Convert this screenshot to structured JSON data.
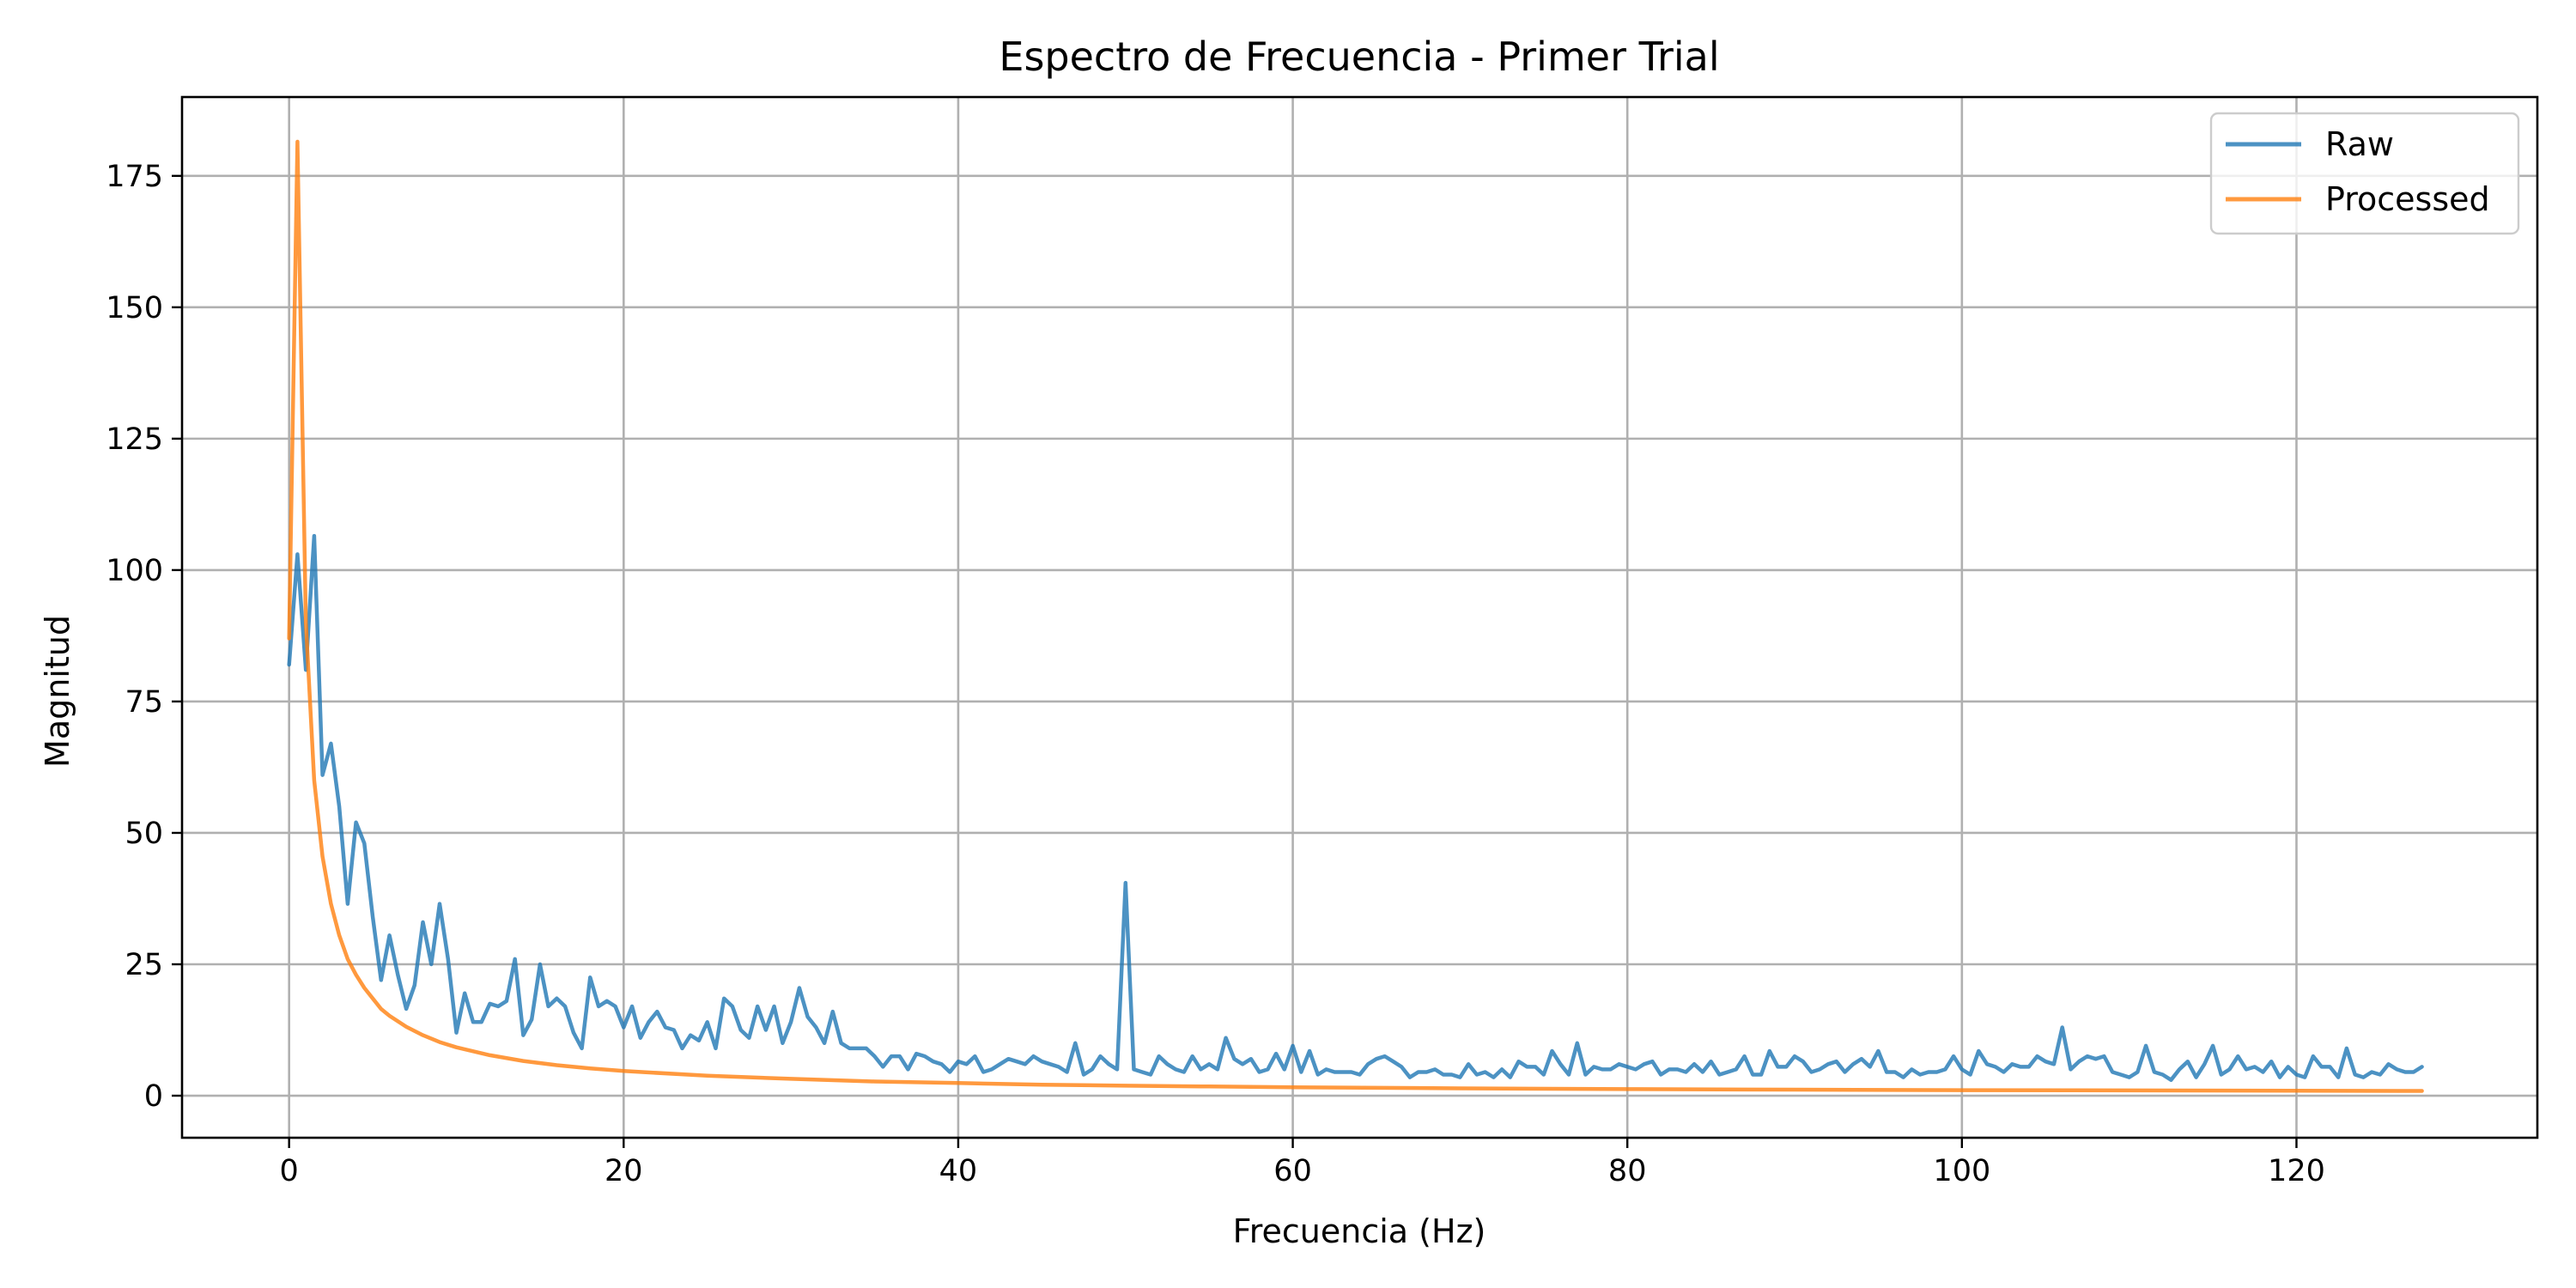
{
  "chart_data": {
    "type": "line",
    "title": "Espectro de Frecuencia - Primer Trial",
    "xlabel": "Frecuencia (Hz)",
    "ylabel": "Magnitud",
    "xlim": [
      -6.4,
      134.4
    ],
    "ylim": [
      -8,
      190
    ],
    "xticks": [
      0,
      20,
      40,
      60,
      80,
      100,
      120
    ],
    "yticks": [
      0,
      25,
      50,
      75,
      100,
      125,
      150,
      175
    ],
    "grid": true,
    "legend_position": "top-right",
    "series": [
      {
        "name": "Raw",
        "color": "#1f77b4",
        "points": [
          [
            0,
            82
          ],
          [
            0.5,
            103
          ],
          [
            1,
            81
          ],
          [
            1.5,
            106.5
          ],
          [
            2,
            61
          ],
          [
            2.5,
            67
          ],
          [
            3,
            55
          ],
          [
            3.5,
            36.5
          ],
          [
            4,
            52
          ],
          [
            4.5,
            48
          ],
          [
            5,
            34
          ],
          [
            5.5,
            22
          ],
          [
            6,
            30.5
          ],
          [
            6.5,
            23
          ],
          [
            7,
            16.5
          ],
          [
            7.5,
            21
          ],
          [
            8,
            33
          ],
          [
            8.5,
            25
          ],
          [
            9,
            36.5
          ],
          [
            9.5,
            26
          ],
          [
            10,
            12
          ],
          [
            10.5,
            19.5
          ],
          [
            11,
            14
          ],
          [
            11.5,
            14
          ],
          [
            12,
            17.5
          ],
          [
            12.5,
            17
          ],
          [
            13,
            18
          ],
          [
            13.5,
            26
          ],
          [
            14,
            11.5
          ],
          [
            14.5,
            14.5
          ],
          [
            15,
            25
          ],
          [
            15.5,
            17
          ],
          [
            16,
            18.5
          ],
          [
            16.5,
            17
          ],
          [
            17,
            12
          ],
          [
            17.5,
            9
          ],
          [
            18,
            22.5
          ],
          [
            18.5,
            17
          ],
          [
            19,
            18
          ],
          [
            19.5,
            17
          ],
          [
            20,
            13
          ],
          [
            20.5,
            17
          ],
          [
            21,
            11
          ],
          [
            21.5,
            14
          ],
          [
            22,
            16
          ],
          [
            22.5,
            13
          ],
          [
            23,
            12.5
          ],
          [
            23.5,
            9
          ],
          [
            24,
            11.5
          ],
          [
            24.5,
            10.5
          ],
          [
            25,
            14
          ],
          [
            25.5,
            9
          ],
          [
            26,
            18.5
          ],
          [
            26.5,
            17
          ],
          [
            27,
            12.5
          ],
          [
            27.5,
            11
          ],
          [
            28,
            17
          ],
          [
            28.5,
            12.5
          ],
          [
            29,
            17
          ],
          [
            29.5,
            10
          ],
          [
            30,
            14
          ],
          [
            30.5,
            20.5
          ],
          [
            31,
            15
          ],
          [
            31.5,
            13
          ],
          [
            32,
            10
          ],
          [
            32.5,
            16
          ],
          [
            33,
            10
          ],
          [
            33.5,
            9
          ],
          [
            34,
            9
          ],
          [
            34.5,
            9
          ],
          [
            35,
            7.5
          ],
          [
            35.5,
            5.5
          ],
          [
            36,
            7.5
          ],
          [
            36.5,
            7.5
          ],
          [
            37,
            5
          ],
          [
            37.5,
            8
          ],
          [
            38,
            7.5
          ],
          [
            38.5,
            6.5
          ],
          [
            39,
            6
          ],
          [
            39.5,
            4.5
          ],
          [
            40,
            6.5
          ],
          [
            40.5,
            6
          ],
          [
            41,
            7.5
          ],
          [
            41.5,
            4.5
          ],
          [
            42,
            5
          ],
          [
            42.5,
            6
          ],
          [
            43,
            7
          ],
          [
            43.5,
            6.5
          ],
          [
            44,
            6
          ],
          [
            44.5,
            7.5
          ],
          [
            45,
            6.5
          ],
          [
            45.5,
            6
          ],
          [
            46,
            5.5
          ],
          [
            46.5,
            4.5
          ],
          [
            47,
            10
          ],
          [
            47.5,
            4
          ],
          [
            48,
            5
          ],
          [
            48.5,
            7.5
          ],
          [
            49,
            6
          ],
          [
            49.5,
            5
          ],
          [
            50,
            40.5
          ],
          [
            50.5,
            5
          ],
          [
            51,
            4.5
          ],
          [
            51.5,
            4
          ],
          [
            52,
            7.5
          ],
          [
            52.5,
            6
          ],
          [
            53,
            5
          ],
          [
            53.5,
            4.5
          ],
          [
            54,
            7.5
          ],
          [
            54.5,
            5
          ],
          [
            55,
            6
          ],
          [
            55.5,
            5
          ],
          [
            56,
            11
          ],
          [
            56.5,
            7
          ],
          [
            57,
            6
          ],
          [
            57.5,
            7
          ],
          [
            58,
            4.5
          ],
          [
            58.5,
            5
          ],
          [
            59,
            8
          ],
          [
            59.5,
            5
          ],
          [
            60,
            9.5
          ],
          [
            60.5,
            4.5
          ],
          [
            61,
            8.5
          ],
          [
            61.5,
            4
          ],
          [
            62,
            5
          ],
          [
            62.5,
            4.5
          ],
          [
            63,
            4.5
          ],
          [
            63.5,
            4.5
          ],
          [
            64,
            4
          ],
          [
            64.5,
            6
          ],
          [
            65,
            7
          ],
          [
            65.5,
            7.5
          ],
          [
            66,
            6.5
          ],
          [
            66.5,
            5.5
          ],
          [
            67,
            3.5
          ],
          [
            67.5,
            4.5
          ],
          [
            68,
            4.5
          ],
          [
            68.5,
            5
          ],
          [
            69,
            4
          ],
          [
            69.5,
            4
          ],
          [
            70,
            3.5
          ],
          [
            70.5,
            6
          ],
          [
            71,
            4
          ],
          [
            71.5,
            4.5
          ],
          [
            72,
            3.5
          ],
          [
            72.5,
            5
          ],
          [
            73,
            3.5
          ],
          [
            73.5,
            6.5
          ],
          [
            74,
            5.5
          ],
          [
            74.5,
            5.5
          ],
          [
            75,
            4
          ],
          [
            75.5,
            8.5
          ],
          [
            76,
            6
          ],
          [
            76.5,
            4
          ],
          [
            77,
            10
          ],
          [
            77.5,
            4
          ],
          [
            78,
            5.5
          ],
          [
            78.5,
            5
          ],
          [
            79,
            5
          ],
          [
            79.5,
            6
          ],
          [
            80,
            5.5
          ],
          [
            80.5,
            5
          ],
          [
            81,
            6
          ],
          [
            81.5,
            6.5
          ],
          [
            82,
            4
          ],
          [
            82.5,
            5
          ],
          [
            83,
            5
          ],
          [
            83.5,
            4.5
          ],
          [
            84,
            6
          ],
          [
            84.5,
            4.5
          ],
          [
            85,
            6.5
          ],
          [
            85.5,
            4
          ],
          [
            86,
            4.5
          ],
          [
            86.5,
            5
          ],
          [
            87,
            7.5
          ],
          [
            87.5,
            4
          ],
          [
            88,
            4
          ],
          [
            88.5,
            8.5
          ],
          [
            89,
            5.5
          ],
          [
            89.5,
            5.5
          ],
          [
            90,
            7.5
          ],
          [
            90.5,
            6.5
          ],
          [
            91,
            4.5
          ],
          [
            91.5,
            5
          ],
          [
            92,
            6
          ],
          [
            92.5,
            6.5
          ],
          [
            93,
            4.5
          ],
          [
            93.5,
            6
          ],
          [
            94,
            7
          ],
          [
            94.5,
            5.5
          ],
          [
            95,
            8.5
          ],
          [
            95.5,
            4.5
          ],
          [
            96,
            4.5
          ],
          [
            96.5,
            3.5
          ],
          [
            97,
            5
          ],
          [
            97.5,
            4
          ],
          [
            98,
            4.5
          ],
          [
            98.5,
            4.5
          ],
          [
            99,
            5
          ],
          [
            99.5,
            7.5
          ],
          [
            100,
            5
          ],
          [
            100.5,
            4
          ],
          [
            101,
            8.5
          ],
          [
            101.5,
            6
          ],
          [
            102,
            5.5
          ],
          [
            102.5,
            4.5
          ],
          [
            103,
            6
          ],
          [
            103.5,
            5.5
          ],
          [
            104,
            5.5
          ],
          [
            104.5,
            7.5
          ],
          [
            105,
            6.5
          ],
          [
            105.5,
            6
          ],
          [
            106,
            13
          ],
          [
            106.5,
            5
          ],
          [
            107,
            6.5
          ],
          [
            107.5,
            7.5
          ],
          [
            108,
            7
          ],
          [
            108.5,
            7.5
          ],
          [
            109,
            4.5
          ],
          [
            109.5,
            4
          ],
          [
            110,
            3.5
          ],
          [
            110.5,
            4.5
          ],
          [
            111,
            9.5
          ],
          [
            111.5,
            4.5
          ],
          [
            112,
            4
          ],
          [
            112.5,
            3
          ],
          [
            113,
            5
          ],
          [
            113.5,
            6.5
          ],
          [
            114,
            3.5
          ],
          [
            114.5,
            6
          ],
          [
            115,
            9.5
          ],
          [
            115.5,
            4
          ],
          [
            116,
            5
          ],
          [
            116.5,
            7.5
          ],
          [
            117,
            5
          ],
          [
            117.5,
            5.5
          ],
          [
            118,
            4.5
          ],
          [
            118.5,
            6.5
          ],
          [
            119,
            3.5
          ],
          [
            119.5,
            5.5
          ],
          [
            120,
            4
          ],
          [
            120.5,
            3.5
          ],
          [
            121,
            7.5
          ],
          [
            121.5,
            5.5
          ],
          [
            122,
            5.5
          ],
          [
            122.5,
            3.5
          ],
          [
            123,
            9
          ],
          [
            123.5,
            4
          ],
          [
            124,
            3.5
          ],
          [
            124.5,
            4.5
          ],
          [
            125,
            4
          ],
          [
            125.5,
            6
          ],
          [
            126,
            5
          ],
          [
            126.5,
            4.5
          ],
          [
            127,
            4.5
          ],
          [
            127.5,
            5.5
          ]
        ]
      },
      {
        "name": "Processed",
        "color": "#ff7f0e",
        "points": [
          [
            0,
            87
          ],
          [
            0.5,
            181.5
          ],
          [
            1,
            90
          ],
          [
            1.5,
            60
          ],
          [
            2,
            45.5
          ],
          [
            2.5,
            36.5
          ],
          [
            3,
            30.5
          ],
          [
            3.5,
            26
          ],
          [
            4,
            23
          ],
          [
            4.5,
            20.5
          ],
          [
            5,
            18.5
          ],
          [
            5.5,
            16.5
          ],
          [
            6,
            15.2
          ],
          [
            7,
            13.1
          ],
          [
            8,
            11.5
          ],
          [
            9,
            10.2
          ],
          [
            10,
            9.2
          ],
          [
            12,
            7.7
          ],
          [
            14,
            6.6
          ],
          [
            16,
            5.8
          ],
          [
            18,
            5.2
          ],
          [
            20,
            4.7
          ],
          [
            25,
            3.8
          ],
          [
            30,
            3.2
          ],
          [
            35,
            2.7
          ],
          [
            40,
            2.4
          ],
          [
            45,
            2.1
          ],
          [
            50,
            1.9
          ],
          [
            55,
            1.75
          ],
          [
            60,
            1.6
          ],
          [
            70,
            1.4
          ],
          [
            80,
            1.25
          ],
          [
            90,
            1.15
          ],
          [
            100,
            1.05
          ],
          [
            110,
            1.0
          ],
          [
            120,
            0.95
          ],
          [
            127.5,
            0.9
          ]
        ]
      }
    ]
  }
}
